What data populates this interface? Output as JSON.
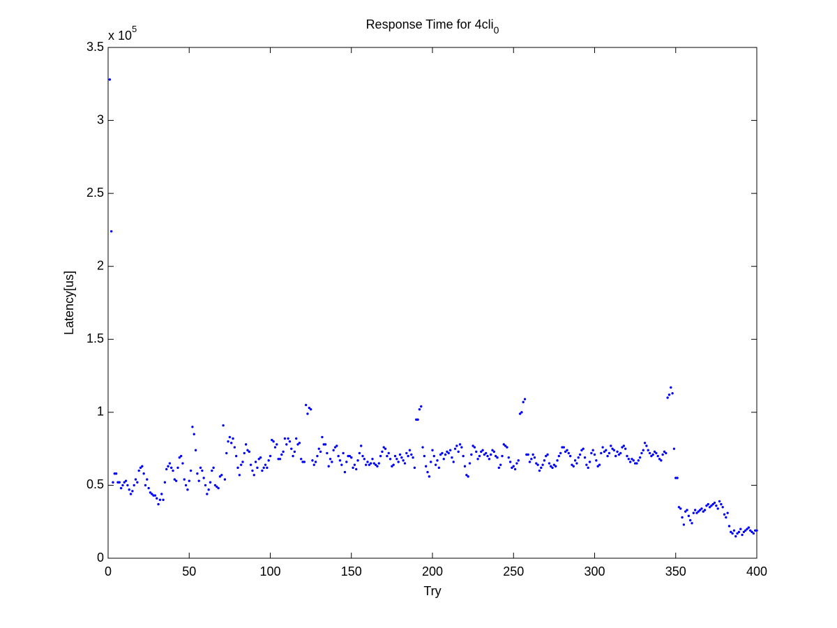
{
  "chart_data": {
    "type": "scatter",
    "title": "Response Time for 4cli",
    "title_subscript": "0",
    "xlabel": "Try",
    "ylabel": "Latency[us]",
    "exponent_base": "x 10",
    "exponent_power": "5",
    "xlim": [
      0,
      400
    ],
    "xticks": [
      0,
      50,
      100,
      150,
      200,
      250,
      300,
      350,
      400
    ],
    "ylim": [
      0,
      3.5
    ],
    "yticks": [
      0,
      0.5,
      1,
      1.5,
      2,
      2.5,
      3,
      3.5
    ],
    "grid": false,
    "color": "#0000ff",
    "x": [
      1,
      2,
      3,
      4,
      5,
      6,
      7,
      8,
      9,
      10,
      11,
      12,
      13,
      14,
      15,
      16,
      17,
      18,
      19,
      20,
      21,
      22,
      23,
      24,
      25,
      26,
      27,
      28,
      29,
      30,
      31,
      32,
      33,
      34,
      35,
      36,
      37,
      38,
      39,
      40,
      41,
      42,
      43,
      44,
      45,
      46,
      47,
      48,
      49,
      50,
      51,
      52,
      53,
      54,
      55,
      56,
      57,
      58,
      59,
      60,
      61,
      62,
      63,
      64,
      65,
      66,
      67,
      68,
      69,
      70,
      71,
      72,
      73,
      74,
      75,
      76,
      77,
      78,
      79,
      80,
      81,
      82,
      83,
      84,
      85,
      86,
      87,
      88,
      89,
      90,
      91,
      92,
      93,
      94,
      95,
      96,
      97,
      98,
      99,
      100,
      101,
      102,
      103,
      104,
      105,
      106,
      107,
      108,
      109,
      110,
      111,
      112,
      113,
      114,
      115,
      116,
      117,
      118,
      119,
      120,
      121,
      122,
      123,
      124,
      125,
      126,
      127,
      128,
      129,
      130,
      131,
      132,
      133,
      134,
      135,
      136,
      137,
      138,
      139,
      140,
      141,
      142,
      143,
      144,
      145,
      146,
      147,
      148,
      149,
      150,
      151,
      152,
      153,
      154,
      155,
      156,
      157,
      158,
      159,
      160,
      161,
      162,
      163,
      164,
      165,
      166,
      167,
      168,
      169,
      170,
      171,
      172,
      173,
      174,
      175,
      176,
      177,
      178,
      179,
      180,
      181,
      182,
      183,
      184,
      185,
      186,
      187,
      188,
      189,
      190,
      191,
      192,
      193,
      194,
      195,
      196,
      197,
      198,
      199,
      200,
      201,
      202,
      203,
      204,
      205,
      206,
      207,
      208,
      209,
      210,
      211,
      212,
      213,
      214,
      215,
      216,
      217,
      218,
      219,
      220,
      221,
      222,
      223,
      224,
      225,
      226,
      227,
      228,
      229,
      230,
      231,
      232,
      233,
      234,
      235,
      236,
      237,
      238,
      239,
      240,
      241,
      242,
      243,
      244,
      245,
      246,
      247,
      248,
      249,
      250,
      251,
      252,
      253,
      254,
      255,
      256,
      257,
      258,
      259,
      260,
      261,
      262,
      263,
      264,
      265,
      266,
      267,
      268,
      269,
      270,
      271,
      272,
      273,
      274,
      275,
      276,
      277,
      278,
      279,
      280,
      281,
      282,
      283,
      284,
      285,
      286,
      287,
      288,
      289,
      290,
      291,
      292,
      293,
      294,
      295,
      296,
      297,
      298,
      299,
      300,
      301,
      302,
      303,
      304,
      305,
      306,
      307,
      308,
      309,
      310,
      311,
      312,
      313,
      314,
      315,
      316,
      317,
      318,
      319,
      320,
      321,
      322,
      323,
      324,
      325,
      326,
      327,
      328,
      329,
      330,
      331,
      332,
      333,
      334,
      335,
      336,
      337,
      338,
      339,
      340,
      341,
      342,
      343,
      344,
      345,
      346,
      347,
      348,
      349,
      350,
      351,
      352,
      353,
      354,
      355,
      356,
      357,
      358,
      359,
      360,
      361,
      362,
      363,
      364,
      365,
      366,
      367,
      368,
      369,
      370,
      371,
      372,
      373,
      374,
      375,
      376,
      377,
      378,
      379,
      380,
      381,
      382,
      383,
      384,
      385,
      386,
      387,
      388,
      389,
      390,
      391,
      392,
      393,
      394,
      395,
      396,
      397,
      398,
      399,
      400
    ],
    "values": [
      3.28,
      2.24,
      0.52,
      0.58,
      0.58,
      0.52,
      0.52,
      0.48,
      0.5,
      0.52,
      0.53,
      0.5,
      0.47,
      0.44,
      0.46,
      0.5,
      0.54,
      0.52,
      0.6,
      0.62,
      0.63,
      0.58,
      0.5,
      0.54,
      0.48,
      0.45,
      0.44,
      0.43,
      0.43,
      0.41,
      0.37,
      0.4,
      0.44,
      0.4,
      0.52,
      0.61,
      0.63,
      0.65,
      0.62,
      0.6,
      0.54,
      0.53,
      0.62,
      0.69,
      0.7,
      0.65,
      0.54,
      0.5,
      0.47,
      0.53,
      0.6,
      0.9,
      0.85,
      0.74,
      0.58,
      0.53,
      0.62,
      0.6,
      0.55,
      0.5,
      0.44,
      0.47,
      0.52,
      0.6,
      0.62,
      0.5,
      0.49,
      0.48,
      0.56,
      0.57,
      0.91,
      0.54,
      0.72,
      0.8,
      0.83,
      0.79,
      0.82,
      0.76,
      0.7,
      0.62,
      0.57,
      0.64,
      0.66,
      0.72,
      0.78,
      0.74,
      0.73,
      0.64,
      0.6,
      0.57,
      0.66,
      0.62,
      0.68,
      0.69,
      0.6,
      0.62,
      0.64,
      0.62,
      0.67,
      0.7,
      0.81,
      0.8,
      0.76,
      0.78,
      0.68,
      0.68,
      0.71,
      0.73,
      0.82,
      0.78,
      0.82,
      0.8,
      0.75,
      0.7,
      0.73,
      0.82,
      0.78,
      0.79,
      0.68,
      0.66,
      0.66,
      1.05,
      0.99,
      1.03,
      1.02,
      0.67,
      0.64,
      0.66,
      0.7,
      0.75,
      0.73,
      0.83,
      0.78,
      0.78,
      0.72,
      0.63,
      0.68,
      0.66,
      0.74,
      0.76,
      0.77,
      0.7,
      0.67,
      0.64,
      0.72,
      0.59,
      0.66,
      0.7,
      0.7,
      0.69,
      0.62,
      0.64,
      0.61,
      0.67,
      0.72,
      0.77,
      0.7,
      0.68,
      0.64,
      0.66,
      0.64,
      0.65,
      0.68,
      0.65,
      0.64,
      0.63,
      0.65,
      0.7,
      0.73,
      0.76,
      0.75,
      0.7,
      0.72,
      0.68,
      0.63,
      0.64,
      0.7,
      0.68,
      0.66,
      0.71,
      0.69,
      0.67,
      0.65,
      0.72,
      0.7,
      0.74,
      0.71,
      0.69,
      0.62,
      0.95,
      0.95,
      1.02,
      1.04,
      0.76,
      0.7,
      0.63,
      0.59,
      0.56,
      0.66,
      0.74,
      0.7,
      0.64,
      0.67,
      0.62,
      0.71,
      0.72,
      0.68,
      0.71,
      0.73,
      0.72,
      0.74,
      0.69,
      0.66,
      0.75,
      0.77,
      0.73,
      0.78,
      0.76,
      0.7,
      0.63,
      0.57,
      0.56,
      0.65,
      0.71,
      0.77,
      0.76,
      0.73,
      0.68,
      0.7,
      0.73,
      0.74,
      0.71,
      0.72,
      0.7,
      0.68,
      0.71,
      0.74,
      0.73,
      0.7,
      0.69,
      0.62,
      0.64,
      0.7,
      0.78,
      0.77,
      0.76,
      0.69,
      0.66,
      0.62,
      0.63,
      0.61,
      0.65,
      0.67,
      0.99,
      1.0,
      1.07,
      1.09,
      0.71,
      0.71,
      0.66,
      0.68,
      0.71,
      0.69,
      0.65,
      0.64,
      0.6,
      0.62,
      0.64,
      0.67,
      0.7,
      0.71,
      0.65,
      0.63,
      0.62,
      0.64,
      0.63,
      0.67,
      0.7,
      0.72,
      0.76,
      0.76,
      0.73,
      0.74,
      0.72,
      0.7,
      0.64,
      0.63,
      0.67,
      0.65,
      0.69,
      0.71,
      0.74,
      0.75,
      0.69,
      0.64,
      0.62,
      0.66,
      0.72,
      0.74,
      0.71,
      0.67,
      0.63,
      0.64,
      0.72,
      0.76,
      0.73,
      0.74,
      0.7,
      0.72,
      0.77,
      0.75,
      0.74,
      0.7,
      0.73,
      0.71,
      0.72,
      0.76,
      0.77,
      0.75,
      0.7,
      0.68,
      0.66,
      0.68,
      0.67,
      0.65,
      0.65,
      0.67,
      0.69,
      0.72,
      0.74,
      0.79,
      0.77,
      0.74,
      0.72,
      0.7,
      0.71,
      0.73,
      0.72,
      0.7,
      0.68,
      0.67,
      0.71,
      0.73,
      0.72,
      1.1,
      1.12,
      1.17,
      1.13,
      0.75,
      0.55,
      0.55,
      0.35,
      0.34,
      0.28,
      0.23,
      0.32,
      0.33,
      0.29,
      0.26,
      0.24,
      0.31,
      0.33,
      0.31,
      0.32,
      0.33,
      0.34,
      0.32,
      0.33,
      0.36,
      0.37,
      0.35,
      0.36,
      0.37,
      0.38,
      0.36,
      0.34,
      0.39,
      0.37,
      0.35,
      0.3,
      0.28,
      0.31,
      0.22,
      0.18,
      0.17,
      0.19,
      0.15,
      0.17,
      0.18,
      0.2,
      0.16,
      0.18,
      0.19,
      0.2,
      0.21,
      0.19,
      0.18,
      0.17,
      0.19,
      0.19
    ]
  }
}
